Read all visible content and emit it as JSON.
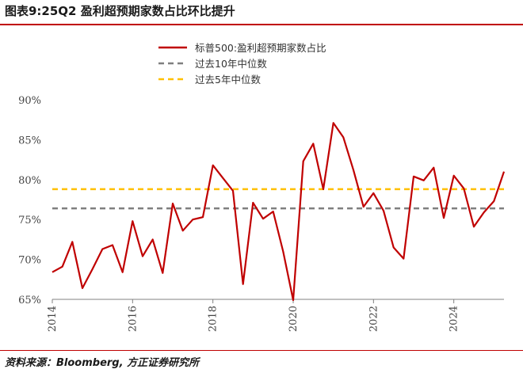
{
  "header": {
    "title": "图表9:25Q2 盈利超预期家数占比环比提升"
  },
  "footer": {
    "source": "资料来源：Bloomberg, 方正证券研究所"
  },
  "chart_data": {
    "type": "line",
    "ylim": [
      65,
      90
    ],
    "y_ticks": [
      "65%",
      "70%",
      "75%",
      "80%",
      "85%",
      "90%"
    ],
    "y_tick_values": [
      65,
      70,
      75,
      80,
      85,
      90
    ],
    "x_ticks": [
      "2014",
      "2016",
      "2018",
      "2020",
      "2022",
      "2024"
    ],
    "x_tick_values": [
      2014,
      2016,
      2018,
      2020,
      2022,
      2024
    ],
    "xlim": [
      2014,
      2025.25
    ],
    "grid": false,
    "legend_position": "top",
    "series": [
      {
        "name": "标普500:盈利超预期家数占比",
        "color": "#c00000",
        "style": "solid",
        "x": [
          2014.0,
          2014.25,
          2014.5,
          2014.75,
          2015.0,
          2015.25,
          2015.5,
          2015.75,
          2016.0,
          2016.25,
          2016.5,
          2016.75,
          2017.0,
          2017.25,
          2017.5,
          2017.75,
          2018.0,
          2018.25,
          2018.5,
          2018.75,
          2019.0,
          2019.25,
          2019.5,
          2019.75,
          2020.0,
          2020.25,
          2020.5,
          2020.75,
          2021.0,
          2021.25,
          2021.5,
          2021.75,
          2022.0,
          2022.25,
          2022.5,
          2022.75,
          2023.0,
          2023.25,
          2023.5,
          2023.75,
          2024.0,
          2024.25,
          2024.5,
          2024.75,
          2025.0,
          2025.25
        ],
        "y": [
          68.4,
          69.1,
          72.2,
          66.4,
          68.8,
          71.3,
          71.8,
          68.4,
          74.8,
          70.4,
          72.5,
          68.3,
          77.0,
          73.6,
          75.0,
          75.3,
          81.8,
          80.2,
          78.6,
          66.9,
          77.1,
          75.1,
          76.0,
          71.0,
          64.9,
          82.3,
          84.5,
          78.8,
          87.1,
          85.3,
          81.2,
          76.6,
          78.3,
          76.1,
          71.5,
          70.1,
          80.4,
          79.9,
          81.5,
          75.2,
          80.5,
          78.9,
          74.1,
          75.9,
          77.3,
          81.0
        ]
      },
      {
        "name": "过去10年中位数",
        "color": "#7f7f7f",
        "style": "dashed",
        "x": [
          2014.0,
          2025.25
        ],
        "y": [
          76.4,
          76.4
        ]
      },
      {
        "name": "过去5年中位数",
        "color": "#ffc000",
        "style": "dashed",
        "x": [
          2014.0,
          2025.25
        ],
        "y": [
          78.8,
          78.8
        ]
      }
    ]
  }
}
